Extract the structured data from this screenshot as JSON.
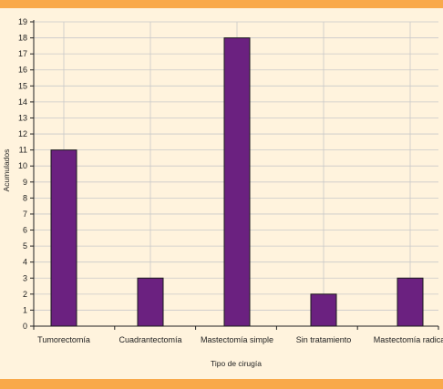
{
  "chart_data": {
    "type": "bar",
    "categories": [
      "Tumorectomía",
      "Cuadrantectomía",
      "Mastectomía simple",
      "Sin tratamiento",
      "Mastectomía radical"
    ],
    "values": [
      11,
      3,
      18,
      2,
      3
    ],
    "title": "",
    "xlabel": "Tipo de cirugía",
    "ylabel": "Acumulados",
    "ylim": [
      0,
      19
    ],
    "yticks": [
      0,
      1,
      2,
      3,
      4,
      5,
      6,
      7,
      8,
      9,
      10,
      11,
      12,
      13,
      14,
      15,
      16,
      17,
      18,
      19
    ],
    "grid": true,
    "colors": {
      "bar": "#6b2180",
      "bar_stroke": "#1a1a1a",
      "grid": "#c9c9c9",
      "plot_background": "#fff3dd",
      "band": "#f9a94a"
    }
  }
}
